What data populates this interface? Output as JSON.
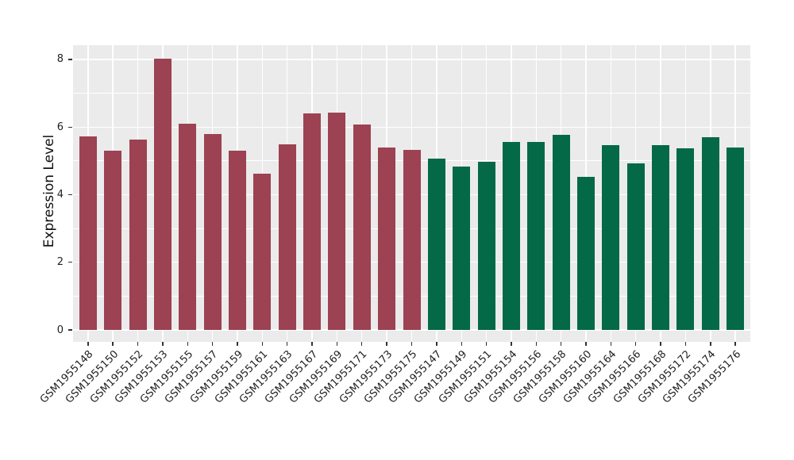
{
  "chart_data": {
    "type": "bar",
    "title": "",
    "xlabel": "",
    "ylabel": "Expression Level",
    "yticks": [
      0,
      2,
      4,
      6,
      8
    ],
    "ylim": [
      -0.35,
      8.42
    ],
    "grid": "on",
    "legend": "none",
    "panel_bg": "#EBEBEB",
    "grid_color": "#FFFFFF",
    "tick_color": "#333333",
    "group_colors": {
      "red": "#9C4252",
      "green": "#046946"
    },
    "categories": [
      "GSM1955148",
      "GSM1955150",
      "GSM1955152",
      "GSM1955153",
      "GSM1955155",
      "GSM1955157",
      "GSM1955159",
      "GSM1955161",
      "GSM1955163",
      "GSM1955167",
      "GSM1955169",
      "GSM1955171",
      "GSM1955173",
      "GSM1955175",
      "GSM1955147",
      "GSM1955149",
      "GSM1955151",
      "GSM1955154",
      "GSM1955156",
      "GSM1955158",
      "GSM1955160",
      "GSM1955164",
      "GSM1955166",
      "GSM1955168",
      "GSM1955172",
      "GSM1955174",
      "GSM1955176"
    ],
    "values": [
      5.73,
      5.31,
      5.63,
      8.03,
      6.1,
      5.8,
      5.31,
      4.62,
      5.49,
      6.41,
      6.43,
      6.08,
      5.39,
      5.33,
      5.06,
      4.83,
      4.97,
      5.56,
      5.55,
      5.76,
      4.52,
      5.46,
      4.93,
      5.47,
      5.38,
      5.69,
      5.4
    ],
    "groups": [
      "red",
      "red",
      "red",
      "red",
      "red",
      "red",
      "red",
      "red",
      "red",
      "red",
      "red",
      "red",
      "red",
      "red",
      "green",
      "green",
      "green",
      "green",
      "green",
      "green",
      "green",
      "green",
      "green",
      "green",
      "green",
      "green",
      "green"
    ]
  }
}
